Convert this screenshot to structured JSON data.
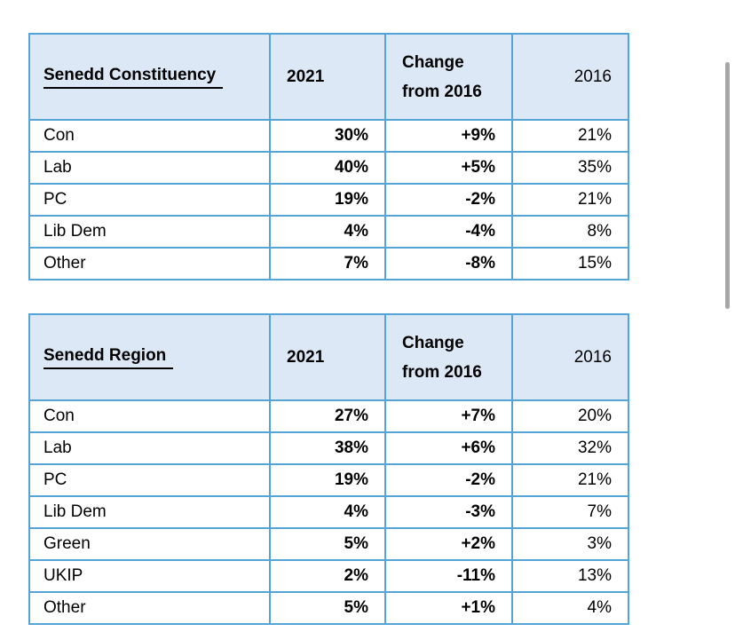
{
  "colors": {
    "table_border": "#55a4d6",
    "header_background": "#dce8f5",
    "text": "#000000",
    "scrollbar": "#a6a6a6"
  },
  "tables": [
    {
      "title": "Senedd Constituency",
      "headers": {
        "y2021": "2021",
        "change": "Change from 2016",
        "y2016": "2016"
      },
      "rows": [
        {
          "party": "Con",
          "y2021": "30%",
          "change": "+9%",
          "y2016": "21%"
        },
        {
          "party": "Lab",
          "y2021": "40%",
          "change": "+5%",
          "y2016": "35%"
        },
        {
          "party": "PC",
          "y2021": "19%",
          "change": "-2%",
          "y2016": "21%"
        },
        {
          "party": "Lib Dem",
          "y2021": "4%",
          "change": "-4%",
          "y2016": "8%"
        },
        {
          "party": "Other",
          "y2021": "7%",
          "change": "-8%",
          "y2016": "15%"
        }
      ]
    },
    {
      "title": "Senedd Region",
      "headers": {
        "y2021": "2021",
        "change": "Change from 2016",
        "y2016": "2016"
      },
      "rows": [
        {
          "party": "Con",
          "y2021": "27%",
          "change": "+7%",
          "y2016": "20%"
        },
        {
          "party": "Lab",
          "y2021": "38%",
          "change": "+6%",
          "y2016": "32%"
        },
        {
          "party": "PC",
          "y2021": "19%",
          "change": "-2%",
          "y2016": "21%"
        },
        {
          "party": "Lib Dem",
          "y2021": "4%",
          "change": "-3%",
          "y2016": "7%"
        },
        {
          "party": "Green",
          "y2021": "5%",
          "change": "+2%",
          "y2016": "3%"
        },
        {
          "party": "UKIP",
          "y2021": "2%",
          "change": "-11%",
          "y2016": "13%"
        },
        {
          "party": "Other",
          "y2021": "5%",
          "change": "+1%",
          "y2016": "4%"
        }
      ]
    }
  ]
}
